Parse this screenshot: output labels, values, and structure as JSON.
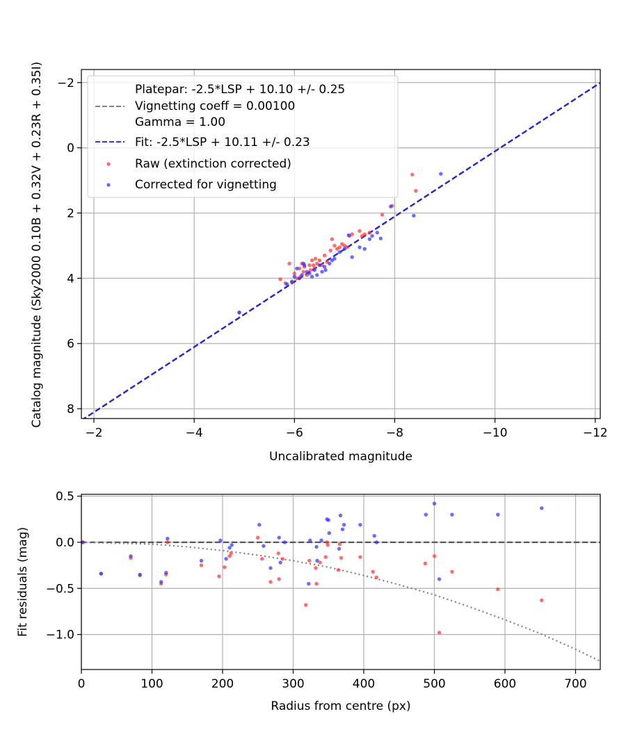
{
  "chart_data": [
    {
      "type": "scatter",
      "xlabel": "Uncalibrated magnitude",
      "ylabel": "Catalog magnitude (Sky2000 0.10B + 0.32V + 0.23R + 0.35I)",
      "xlim": [
        -1.75,
        -12.1
      ],
      "ylim": [
        8.3,
        -2.4
      ],
      "x_inverted": true,
      "y_inverted": true,
      "x_ticks": [
        -2,
        -4,
        -6,
        -8,
        -10,
        -12
      ],
      "x_tick_labels": [
        "−2",
        "−4",
        "−6",
        "−8",
        "−10",
        "−12"
      ],
      "y_ticks": [
        -2,
        0,
        2,
        4,
        6,
        8
      ],
      "y_tick_labels": [
        "−2",
        "0",
        "2",
        "4",
        "6",
        "8"
      ],
      "grid": true,
      "legend_position": "upper-left",
      "legend": [
        {
          "label": "Platepar: -2.5*LSP + 10.10 +/- 0.25",
          "style": "none"
        },
        {
          "label": "Vignetting coeff = 0.00100",
          "style": "dashed-line",
          "color": "#808080"
        },
        {
          "label": "Gamma = 1.00",
          "style": "none"
        },
        {
          "label": "Fit: -2.5*LSP + 10.11 +/- 0.23",
          "style": "dashed-line",
          "color": "#3333ee"
        },
        {
          "label": "Raw (extinction corrected)",
          "style": "marker",
          "color": "#ff3333"
        },
        {
          "label": "Corrected for vignetting",
          "style": "marker",
          "color": "#3333ff"
        }
      ],
      "lines": [
        {
          "name": "Platepar",
          "slope": 1.0,
          "intercept": 10.1,
          "style": "dashed",
          "color": "#808080"
        },
        {
          "name": "Fit",
          "slope": 1.0,
          "intercept": 10.11,
          "style": "dashed",
          "color": "#2222dd"
        }
      ],
      "series": [
        {
          "name": "Raw (extinction corrected)",
          "color": "#ff3333",
          "points": [
            [
              -4.9,
              5.05
            ],
            [
              -5.72,
              4.03
            ],
            [
              -5.82,
              4.15
            ],
            [
              -5.9,
              3.55
            ],
            [
              -5.95,
              4.12
            ],
            [
              -6.0,
              3.85
            ],
            [
              -6.05,
              4.0
            ],
            [
              -6.1,
              3.7
            ],
            [
              -6.12,
              3.95
            ],
            [
              -6.15,
              3.55
            ],
            [
              -6.18,
              3.8
            ],
            [
              -6.2,
              3.65
            ],
            [
              -6.25,
              3.9
            ],
            [
              -6.3,
              3.6
            ],
            [
              -6.32,
              3.75
            ],
            [
              -6.35,
              3.45
            ],
            [
              -6.38,
              3.6
            ],
            [
              -6.4,
              3.7
            ],
            [
              -6.42,
              3.4
            ],
            [
              -6.45,
              3.55
            ],
            [
              -6.5,
              3.45
            ],
            [
              -6.55,
              3.6
            ],
            [
              -6.6,
              3.3
            ],
            [
              -6.65,
              3.5
            ],
            [
              -6.72,
              3.15
            ],
            [
              -6.75,
              2.8
            ],
            [
              -6.8,
              3.0
            ],
            [
              -6.85,
              3.1
            ],
            [
              -6.9,
              3.05
            ],
            [
              -6.95,
              2.95
            ],
            [
              -7.0,
              3.0
            ],
            [
              -7.05,
              3.05
            ],
            [
              -7.1,
              2.7
            ],
            [
              -7.15,
              2.65
            ],
            [
              -7.3,
              2.55
            ],
            [
              -7.35,
              2.7
            ],
            [
              -7.4,
              2.65
            ],
            [
              -7.5,
              2.6
            ],
            [
              -7.75,
              2.05
            ],
            [
              -7.95,
              1.78
            ],
            [
              -8.35,
              0.82
            ],
            [
              -8.42,
              1.32
            ]
          ]
        },
        {
          "name": "Corrected for vignetting",
          "color": "#3333ff",
          "points": [
            [
              -4.9,
              5.05
            ],
            [
              -5.85,
              4.18
            ],
            [
              -5.95,
              4.1
            ],
            [
              -6.0,
              3.95
            ],
            [
              -6.05,
              3.7
            ],
            [
              -6.1,
              4.0
            ],
            [
              -6.15,
              3.9
            ],
            [
              -6.18,
              3.55
            ],
            [
              -6.2,
              3.6
            ],
            [
              -6.25,
              3.8
            ],
            [
              -6.3,
              3.85
            ],
            [
              -6.35,
              3.95
            ],
            [
              -6.4,
              3.75
            ],
            [
              -6.45,
              3.9
            ],
            [
              -6.5,
              3.6
            ],
            [
              -6.55,
              3.8
            ],
            [
              -6.6,
              3.65
            ],
            [
              -6.62,
              3.75
            ],
            [
              -6.7,
              3.55
            ],
            [
              -6.75,
              3.45
            ],
            [
              -6.8,
              3.4
            ],
            [
              -6.9,
              3.2
            ],
            [
              -7.0,
              3.1
            ],
            [
              -7.08,
              2.68
            ],
            [
              -7.15,
              3.35
            ],
            [
              -7.3,
              3.05
            ],
            [
              -7.4,
              3.1
            ],
            [
              -7.5,
              2.8
            ],
            [
              -7.55,
              2.7
            ],
            [
              -7.65,
              2.6
            ],
            [
              -7.72,
              2.78
            ],
            [
              -7.92,
              1.8
            ],
            [
              -8.38,
              2.08
            ],
            [
              -8.92,
              0.8
            ]
          ]
        }
      ]
    },
    {
      "type": "scatter",
      "xlabel": "Radius from centre (px)",
      "ylabel": "Fit residuals (mag)",
      "xlim": [
        0,
        735
      ],
      "ylim": [
        -1.38,
        0.52
      ],
      "x_ticks": [
        0,
        100,
        200,
        300,
        400,
        500,
        600,
        700
      ],
      "x_tick_labels": [
        "0",
        "100",
        "200",
        "300",
        "400",
        "500",
        "600",
        "700"
      ],
      "y_ticks": [
        0.5,
        0.0,
        -0.5,
        -1.0
      ],
      "y_tick_labels": [
        "0.5",
        "0.0",
        "−0.5",
        "−1.0"
      ],
      "grid": true,
      "lines": [
        {
          "name": "zero",
          "style": "dashed",
          "color": "#555555",
          "points": [
            [
              0,
              0
            ],
            [
              735,
              0
            ]
          ]
        },
        {
          "name": "vignetting curve",
          "style": "dotted",
          "color": "#808080",
          "points": [
            [
              0,
              0
            ],
            [
              100,
              -0.02
            ],
            [
              150,
              -0.05
            ],
            [
              200,
              -0.09
            ],
            [
              250,
              -0.14
            ],
            [
              300,
              -0.2
            ],
            [
              350,
              -0.27
            ],
            [
              400,
              -0.36
            ],
            [
              450,
              -0.46
            ],
            [
              500,
              -0.57
            ],
            [
              550,
              -0.7
            ],
            [
              600,
              -0.84
            ],
            [
              650,
              -0.99
            ],
            [
              700,
              -1.16
            ],
            [
              735,
              -1.29
            ]
          ]
        }
      ],
      "series": [
        {
          "name": "Raw (extinction corrected)",
          "color": "#ff3333",
          "points": [
            [
              2,
              0.0
            ],
            [
              28,
              -0.34
            ],
            [
              70,
              -0.17
            ],
            [
              83,
              -0.36
            ],
            [
              113,
              -0.45
            ],
            [
              120,
              -0.35
            ],
            [
              122,
              0.0
            ],
            [
              170,
              -0.25
            ],
            [
              195,
              -0.37
            ],
            [
              203,
              -0.27
            ],
            [
              210,
              -0.15
            ],
            [
              212,
              -0.12
            ],
            [
              250,
              0.05
            ],
            [
              256,
              -0.18
            ],
            [
              268,
              -0.43
            ],
            [
              279,
              -0.12
            ],
            [
              280,
              -0.4
            ],
            [
              285,
              -0.18
            ],
            [
              318,
              -0.68
            ],
            [
              323,
              -0.2
            ],
            [
              332,
              -0.28
            ],
            [
              333,
              -0.45
            ],
            [
              338,
              -0.22
            ],
            [
              346,
              -0.16
            ],
            [
              348,
              0.0
            ],
            [
              349,
              -0.03
            ],
            [
              364,
              -0.3
            ],
            [
              366,
              -0.02
            ],
            [
              368,
              -0.17
            ],
            [
              395,
              -0.16
            ],
            [
              413,
              -0.32
            ],
            [
              418,
              -0.38
            ],
            [
              487,
              -0.23
            ],
            [
              500,
              -0.15
            ],
            [
              507,
              -0.98
            ],
            [
              525,
              -0.32
            ],
            [
              590,
              -0.51
            ],
            [
              652,
              -0.63
            ]
          ]
        },
        {
          "name": "Corrected for vignetting",
          "color": "#3333ff",
          "points": [
            [
              2,
              0.0
            ],
            [
              28,
              -0.34
            ],
            [
              70,
              -0.15
            ],
            [
              83,
              -0.35
            ],
            [
              113,
              -0.43
            ],
            [
              120,
              -0.33
            ],
            [
              122,
              0.04
            ],
            [
              170,
              -0.2
            ],
            [
              197,
              0.02
            ],
            [
              205,
              -0.18
            ],
            [
              210,
              -0.06
            ],
            [
              213,
              -0.03
            ],
            [
              252,
              0.19
            ],
            [
              258,
              -0.04
            ],
            [
              268,
              -0.28
            ],
            [
              280,
              0.05
            ],
            [
              282,
              -0.22
            ],
            [
              288,
              0.0
            ],
            [
              322,
              -0.45
            ],
            [
              324,
              0.02
            ],
            [
              333,
              -0.05
            ],
            [
              334,
              -0.2
            ],
            [
              340,
              0.02
            ],
            [
              348,
              0.25
            ],
            [
              350,
              0.24
            ],
            [
              351,
              0.1
            ],
            [
              365,
              -0.07
            ],
            [
              367,
              0.29
            ],
            [
              370,
              0.14
            ],
            [
              372,
              0.19
            ],
            [
              395,
              0.19
            ],
            [
              415,
              0.07
            ],
            [
              418,
              0.0
            ],
            [
              488,
              0.3
            ],
            [
              500,
              0.42
            ],
            [
              507,
              -0.4
            ],
            [
              525,
              0.3
            ],
            [
              590,
              0.3
            ],
            [
              652,
              0.37
            ]
          ]
        }
      ]
    }
  ]
}
